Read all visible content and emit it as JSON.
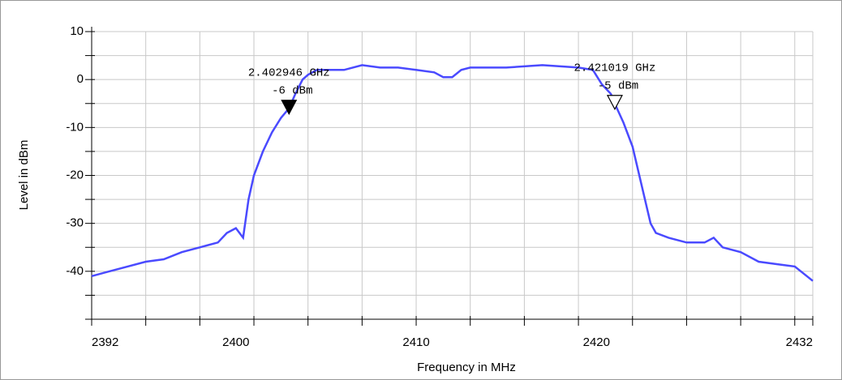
{
  "chart_data": {
    "type": "line",
    "x_label": "Frequency in MHz",
    "y_label": "Level in dBm",
    "xlim": [
      2392,
      2432
    ],
    "ylim": [
      -50,
      10
    ],
    "xticks": [
      2392,
      2400,
      2410,
      2420,
      2432
    ],
    "yticks": [
      -40,
      -30,
      -20,
      -10,
      0,
      10
    ],
    "xgrid": [
      2392,
      2395,
      2398,
      2401,
      2404,
      2407,
      2410,
      2413,
      2416,
      2419,
      2422,
      2425,
      2428,
      2431,
      2432
    ],
    "ygrid": [
      -50,
      -45,
      -40,
      -35,
      -30,
      -25,
      -20,
      -15,
      -10,
      -5,
      0,
      5,
      10
    ],
    "grid": true,
    "series": [
      {
        "color": "#4a4aff",
        "x": [
          2392,
          2393,
          2394,
          2395,
          2396,
          2397,
          2398,
          2399,
          2399.5,
          2400,
          2400.4,
          2400.7,
          2401,
          2401.5,
          2402,
          2402.5,
          2402.946,
          2403.3,
          2403.7,
          2404,
          2404.5,
          2406,
          2407,
          2408,
          2409,
          2410,
          2411,
          2411.5,
          2412,
          2412.5,
          2413,
          2415,
          2417,
          2419,
          2419.8,
          2420.3,
          2420.8,
          2421.019,
          2421.5,
          2422,
          2422.5,
          2423,
          2423.3,
          2424,
          2425,
          2426,
          2426.5,
          2427,
          2428,
          2429,
          2430,
          2431,
          2432
        ],
        "values": [
          -41,
          -40,
          -39,
          -38,
          -37.5,
          -36,
          -35,
          -34,
          -32,
          -31,
          -33,
          -25,
          -20,
          -15,
          -11,
          -8,
          -6,
          -3,
          0,
          1,
          2,
          2,
          3,
          2.5,
          2.5,
          2,
          1.5,
          0.5,
          0.5,
          2,
          2.5,
          2.5,
          3,
          2.5,
          2,
          -1,
          -3,
          -5,
          -9,
          -14,
          -22,
          -30,
          -32,
          -33,
          -34,
          -34,
          -33,
          -35,
          -36,
          -38,
          -38.5,
          -39,
          -42
        ]
      }
    ],
    "markers": [
      {
        "x": 2402.946,
        "y": -6,
        "filled": true,
        "freq_label": "2.402946 GHz",
        "level_label": "-6 dBm"
      },
      {
        "x": 2421.019,
        "y": -5,
        "filled": false,
        "freq_label": "2.421019 GHz",
        "level_label": "-5 dBm"
      }
    ]
  }
}
